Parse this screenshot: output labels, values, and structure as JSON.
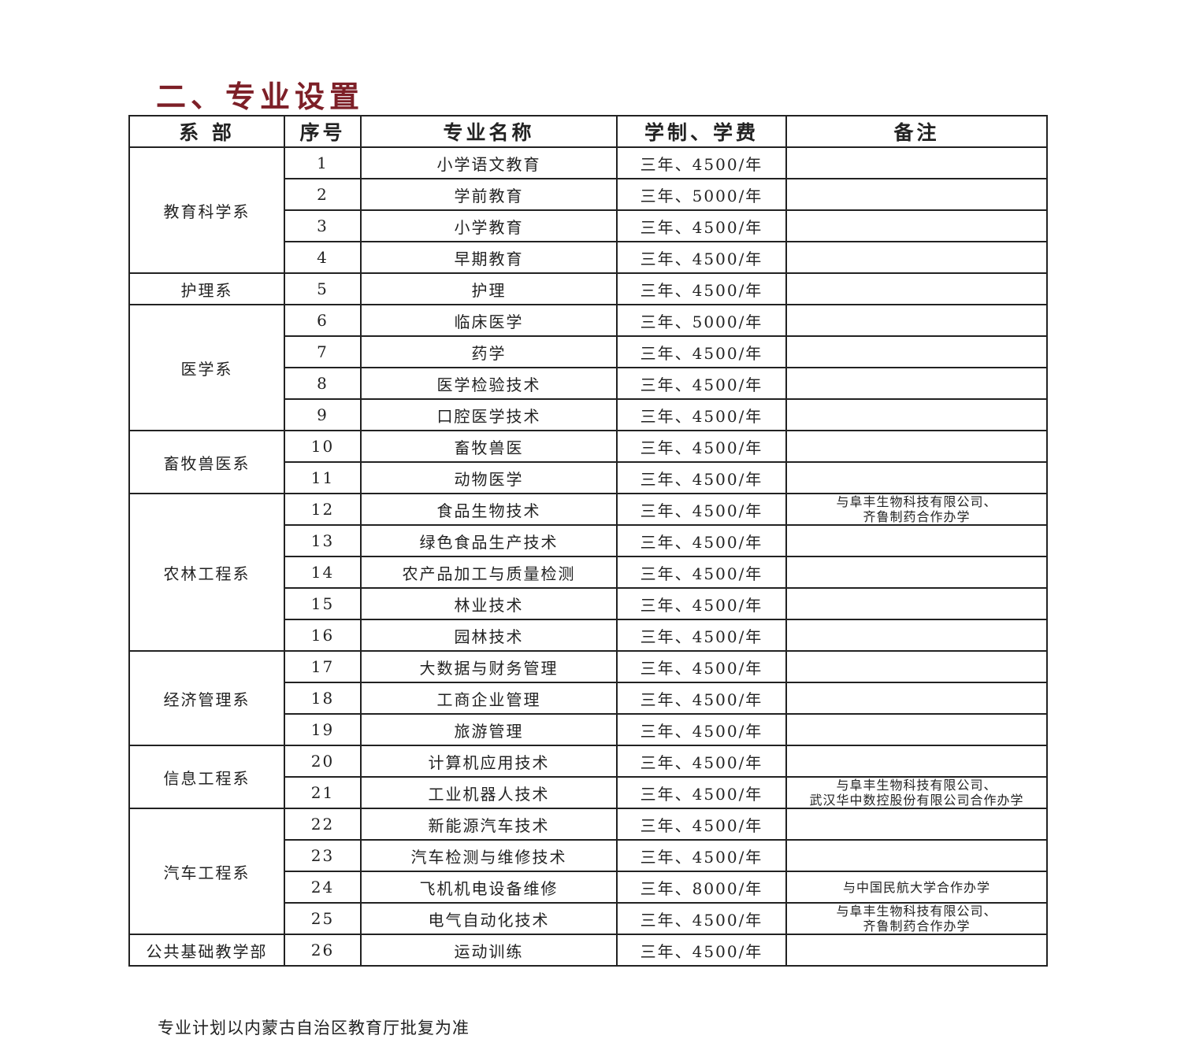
{
  "title": "二、专业设置",
  "headers": [
    "系 部",
    "序号",
    "专业名称",
    "学制、学费",
    "备注"
  ],
  "departments": [
    {
      "name": "教育科学系",
      "majors": [
        {
          "no": "1",
          "name": "小学语文教育",
          "fee": "三年、4500/年",
          "note": ""
        },
        {
          "no": "2",
          "name": "学前教育",
          "fee": "三年、5000/年",
          "note": ""
        },
        {
          "no": "3",
          "name": "小学教育",
          "fee": "三年、4500/年",
          "note": ""
        },
        {
          "no": "4",
          "name": "早期教育",
          "fee": "三年、4500/年",
          "note": ""
        }
      ]
    },
    {
      "name": "护理系",
      "majors": [
        {
          "no": "5",
          "name": "护理",
          "fee": "三年、4500/年",
          "note": ""
        }
      ]
    },
    {
      "name": "医学系",
      "majors": [
        {
          "no": "6",
          "name": "临床医学",
          "fee": "三年、5000/年",
          "note": ""
        },
        {
          "no": "7",
          "name": "药学",
          "fee": "三年、4500/年",
          "note": ""
        },
        {
          "no": "8",
          "name": "医学检验技术",
          "fee": "三年、4500/年",
          "note": ""
        },
        {
          "no": "9",
          "name": "口腔医学技术",
          "fee": "三年、4500/年",
          "note": ""
        }
      ]
    },
    {
      "name": "畜牧兽医系",
      "majors": [
        {
          "no": "10",
          "name": "畜牧兽医",
          "fee": "三年、4500/年",
          "note": ""
        },
        {
          "no": "11",
          "name": "动物医学",
          "fee": "三年、4500/年",
          "note": ""
        }
      ]
    },
    {
      "name": "农林工程系",
      "majors": [
        {
          "no": "12",
          "name": "食品生物技术",
          "fee": "三年、4500/年",
          "note": "与阜丰生物科技有限公司、\n齐鲁制药合作办学"
        },
        {
          "no": "13",
          "name": "绿色食品生产技术",
          "fee": "三年、4500/年",
          "note": ""
        },
        {
          "no": "14",
          "name": "农产品加工与质量检测",
          "fee": "三年、4500/年",
          "note": ""
        },
        {
          "no": "15",
          "name": "林业技术",
          "fee": "三年、4500/年",
          "note": ""
        },
        {
          "no": "16",
          "name": "园林技术",
          "fee": "三年、4500/年",
          "note": ""
        }
      ]
    },
    {
      "name": "经济管理系",
      "majors": [
        {
          "no": "17",
          "name": "大数据与财务管理",
          "fee": "三年、4500/年",
          "note": ""
        },
        {
          "no": "18",
          "name": "工商企业管理",
          "fee": "三年、4500/年",
          "note": ""
        },
        {
          "no": "19",
          "name": "旅游管理",
          "fee": "三年、4500/年",
          "note": ""
        }
      ]
    },
    {
      "name": "信息工程系",
      "majors": [
        {
          "no": "20",
          "name": "计算机应用技术",
          "fee": "三年、4500/年",
          "note": ""
        },
        {
          "no": "21",
          "name": "工业机器人技术",
          "fee": "三年、4500/年",
          "note": "与阜丰生物科技有限公司、\n武汉华中数控股份有限公司合作办学"
        }
      ]
    },
    {
      "name": "汽车工程系",
      "majors": [
        {
          "no": "22",
          "name": "新能源汽车技术",
          "fee": "三年、4500/年",
          "note": ""
        },
        {
          "no": "23",
          "name": "汽车检测与维修技术",
          "fee": "三年、4500/年",
          "note": ""
        },
        {
          "no": "24",
          "name": "飞机机电设备维修",
          "fee": "三年、8000/年",
          "note": "与中国民航大学合作办学"
        },
        {
          "no": "25",
          "name": "电气自动化技术",
          "fee": "三年、4500/年",
          "note": "与阜丰生物科技有限公司、\n齐鲁制药合作办学"
        }
      ]
    },
    {
      "name": "公共基础教学部",
      "majors": [
        {
          "no": "26",
          "name": "运动训练",
          "fee": "三年、4500/年",
          "note": ""
        }
      ]
    }
  ],
  "footnote": "专业计划以内蒙古自治区教育厅批复为准",
  "colors": {
    "title": "#7d1f27",
    "border": "#222222"
  }
}
